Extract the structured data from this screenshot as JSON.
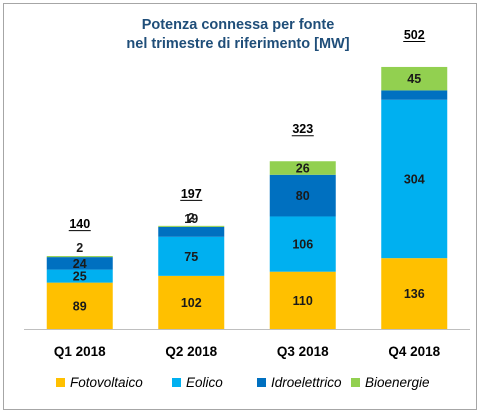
{
  "chart_data": {
    "type": "bar",
    "stacked": true,
    "title": "Potenza connessa per fonte",
    "subtitle": "nel trimestre di riferimento [MW]",
    "categories": [
      "Q1 2018",
      "Q2 2018",
      "Q3 2018",
      "Q4 2018"
    ],
    "totals": [
      "140",
      "197",
      "323",
      "502"
    ],
    "series": [
      {
        "name": "Fotovoltaico",
        "color": "#ffc000",
        "values": [
          89,
          102,
          110,
          136
        ]
      },
      {
        "name": "Eolico",
        "color": "#00b0f0",
        "values": [
          25,
          75,
          106,
          304
        ]
      },
      {
        "name": "Idroelettrico",
        "color": "#0070c0",
        "values": [
          24,
          19,
          80,
          18
        ]
      },
      {
        "name": "Bioenergie",
        "color": "#92d050",
        "values": [
          2,
          2,
          26,
          45
        ]
      }
    ],
    "ylim": [
      0,
      572
    ],
    "grid": false,
    "legend_position": "bottom"
  }
}
